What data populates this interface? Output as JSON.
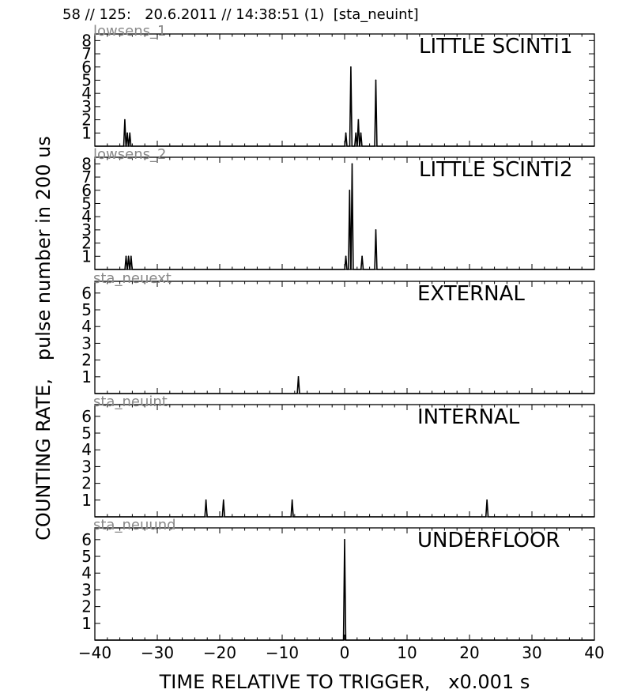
{
  "figure": {
    "title": "58 // 125:   20.6.2011 // 14:38:51 (1)  [sta_neuint]",
    "ylabel": "COUNTING RATE,   pulse number in 200 us",
    "xlabel": "TIME RELATIVE TO TRIGGER,   x0.001 s"
  },
  "chart_data": [
    {
      "type": "line",
      "title": "LITTLE SCINTI1",
      "sensor": "lowsens_1",
      "xlim": [
        -40,
        40
      ],
      "ylim": [
        0,
        8.5
      ],
      "yticks": [
        1,
        2,
        3,
        4,
        5,
        6,
        7,
        8
      ],
      "xticks": [
        -40,
        -30,
        -20,
        -10,
        0,
        10,
        20,
        30,
        40
      ],
      "peaks": [
        {
          "x": -35.2,
          "y": 2
        },
        {
          "x": -34.8,
          "y": 1
        },
        {
          "x": -34.4,
          "y": 1
        },
        {
          "x": 0.2,
          "y": 1
        },
        {
          "x": 1.0,
          "y": 6
        },
        {
          "x": 1.8,
          "y": 1
        },
        {
          "x": 2.2,
          "y": 2
        },
        {
          "x": 2.6,
          "y": 1
        },
        {
          "x": 5.0,
          "y": 5
        }
      ]
    },
    {
      "type": "line",
      "title": "LITTLE SCINTI2",
      "sensor": "lowsens_2",
      "xlim": [
        -40,
        40
      ],
      "ylim": [
        0,
        8.5
      ],
      "yticks": [
        1,
        2,
        3,
        4,
        5,
        6,
        7,
        8
      ],
      "xticks": [
        -40,
        -30,
        -20,
        -10,
        0,
        10,
        20,
        30,
        40
      ],
      "peaks": [
        {
          "x": -35.0,
          "y": 1
        },
        {
          "x": -34.6,
          "y": 1
        },
        {
          "x": -34.2,
          "y": 1
        },
        {
          "x": 0.2,
          "y": 1
        },
        {
          "x": 0.8,
          "y": 6
        },
        {
          "x": 1.2,
          "y": 8
        },
        {
          "x": 2.8,
          "y": 1
        },
        {
          "x": 5.0,
          "y": 3
        }
      ]
    },
    {
      "type": "line",
      "title": "EXTERNAL",
      "sensor": "sta_neuext",
      "xlim": [
        -40,
        40
      ],
      "ylim": [
        0,
        6.7
      ],
      "yticks": [
        1,
        2,
        3,
        4,
        5,
        6
      ],
      "xticks": [
        -40,
        -30,
        -20,
        -10,
        0,
        10,
        20,
        30,
        40
      ],
      "peaks": [
        {
          "x": -7.4,
          "y": 1
        }
      ]
    },
    {
      "type": "line",
      "title": "INTERNAL",
      "sensor": "sta_neuint",
      "xlim": [
        -40,
        40
      ],
      "ylim": [
        0,
        6.7
      ],
      "yticks": [
        1,
        2,
        3,
        4,
        5,
        6
      ],
      "xticks": [
        -40,
        -30,
        -20,
        -10,
        0,
        10,
        20,
        30,
        40
      ],
      "peaks": [
        {
          "x": -22.2,
          "y": 1
        },
        {
          "x": -19.4,
          "y": 1
        },
        {
          "x": -8.4,
          "y": 1
        },
        {
          "x": 22.8,
          "y": 1
        }
      ]
    },
    {
      "type": "line",
      "title": "UNDERFLOOR",
      "sensor": "sta_neuund",
      "xlim": [
        -40,
        40
      ],
      "ylim": [
        0,
        6.7
      ],
      "yticks": [
        1,
        2,
        3,
        4,
        5,
        6
      ],
      "xticks": [
        -40,
        -30,
        -20,
        -10,
        0,
        10,
        20,
        30,
        40
      ],
      "xticklabels": [
        "−40",
        "−30",
        "−20",
        "−10",
        "0",
        "10",
        "20",
        "30",
        "40"
      ],
      "peaks": [
        {
          "x": 0.0,
          "y": 6
        }
      ]
    }
  ]
}
